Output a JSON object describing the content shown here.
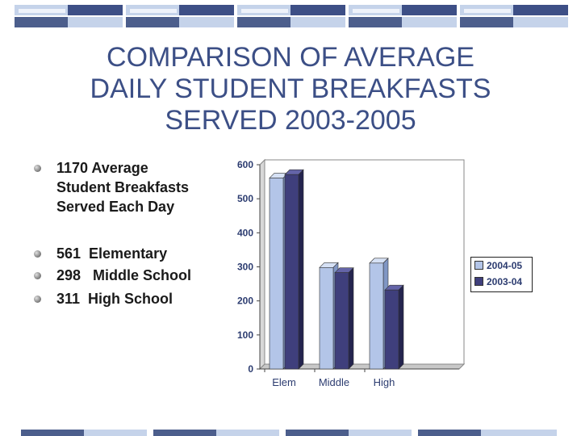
{
  "title_lines": [
    "COMPARISON OF AVERAGE",
    "DAILY STUDENT BREAKFASTS",
    "SERVED 2003-2005"
  ],
  "bullets": [
    "1170 Average\nStudent Breakfasts\nServed Each Day",
    "561  Elementary",
    "298   Middle School",
    "311  High School"
  ],
  "colors": {
    "title": "#3c4f86",
    "series_2004": "#b3c5e8",
    "series_2003": "#3f3f7c"
  },
  "chart_data": {
    "type": "bar",
    "categories": [
      "Elem",
      "Middle",
      "High"
    ],
    "series": [
      {
        "name": "2004-05",
        "values": [
          561,
          298,
          311
        ]
      },
      {
        "name": "2003-04",
        "values": [
          571,
          283,
          232
        ]
      }
    ],
    "ylim": [
      0,
      600
    ],
    "yticks": [
      0,
      100,
      200,
      300,
      400,
      500,
      600
    ],
    "legend": "right",
    "grid": false
  }
}
